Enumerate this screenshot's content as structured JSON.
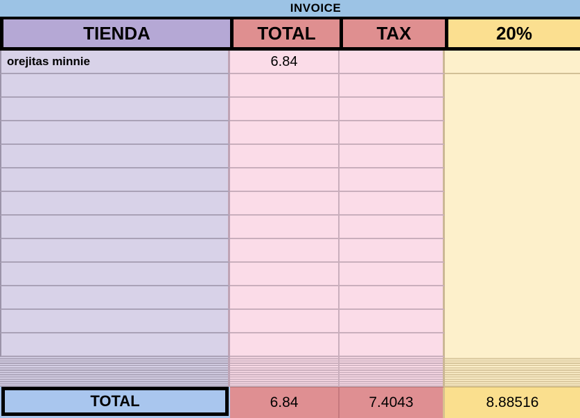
{
  "title": "INVOICE",
  "table": {
    "columns": [
      {
        "label": "TIENDA"
      },
      {
        "label": "TOTAL"
      },
      {
        "label": "TAX"
      },
      {
        "label": "20%"
      }
    ],
    "rows": [
      {
        "tienda": "orejitas minnie",
        "total": "6.84",
        "tax": "",
        "pct": ""
      },
      {
        "tienda": "",
        "total": "",
        "tax": "",
        "pct": ""
      },
      {
        "tienda": "",
        "total": "",
        "tax": "",
        "pct": ""
      },
      {
        "tienda": "",
        "total": "",
        "tax": "",
        "pct": ""
      },
      {
        "tienda": "",
        "total": "",
        "tax": "",
        "pct": ""
      },
      {
        "tienda": "",
        "total": "",
        "tax": "",
        "pct": ""
      },
      {
        "tienda": "",
        "total": "",
        "tax": "",
        "pct": ""
      },
      {
        "tienda": "",
        "total": "",
        "tax": "",
        "pct": ""
      },
      {
        "tienda": "",
        "total": "",
        "tax": "",
        "pct": ""
      },
      {
        "tienda": "",
        "total": "",
        "tax": "",
        "pct": ""
      },
      {
        "tienda": "",
        "total": "",
        "tax": "",
        "pct": ""
      },
      {
        "tienda": "",
        "total": "",
        "tax": "",
        "pct": ""
      },
      {
        "tienda": "",
        "total": "",
        "tax": "",
        "pct": ""
      }
    ],
    "footer": {
      "label": "TOTAL",
      "total": "6.84",
      "tax": "7.4043",
      "pct": "8.88516"
    }
  },
  "colors": {
    "banner_blue": "#9cc3e5",
    "header_purple": "#b5a8d5",
    "header_salmon": "#df8f90",
    "header_yellow": "#fbdf90",
    "cell_lavender": "#d8d2e8",
    "cell_pink": "#fbdce8",
    "cell_light_yellow": "#fdf0cb",
    "footer_blue": "#a9c6ee",
    "footer_salmon": "#df8f92",
    "footer_yellow": "#fadf8e",
    "border_black": "#000000"
  },
  "chart_data": {
    "type": "table",
    "title": "INVOICE",
    "columns": [
      "TIENDA",
      "TOTAL",
      "TAX",
      "20%"
    ],
    "rows": [
      [
        "orejitas minnie",
        6.84,
        null,
        null
      ]
    ],
    "empty_row_count": 12,
    "footer": [
      "TOTAL",
      6.84,
      7.4043,
      8.88516
    ]
  }
}
